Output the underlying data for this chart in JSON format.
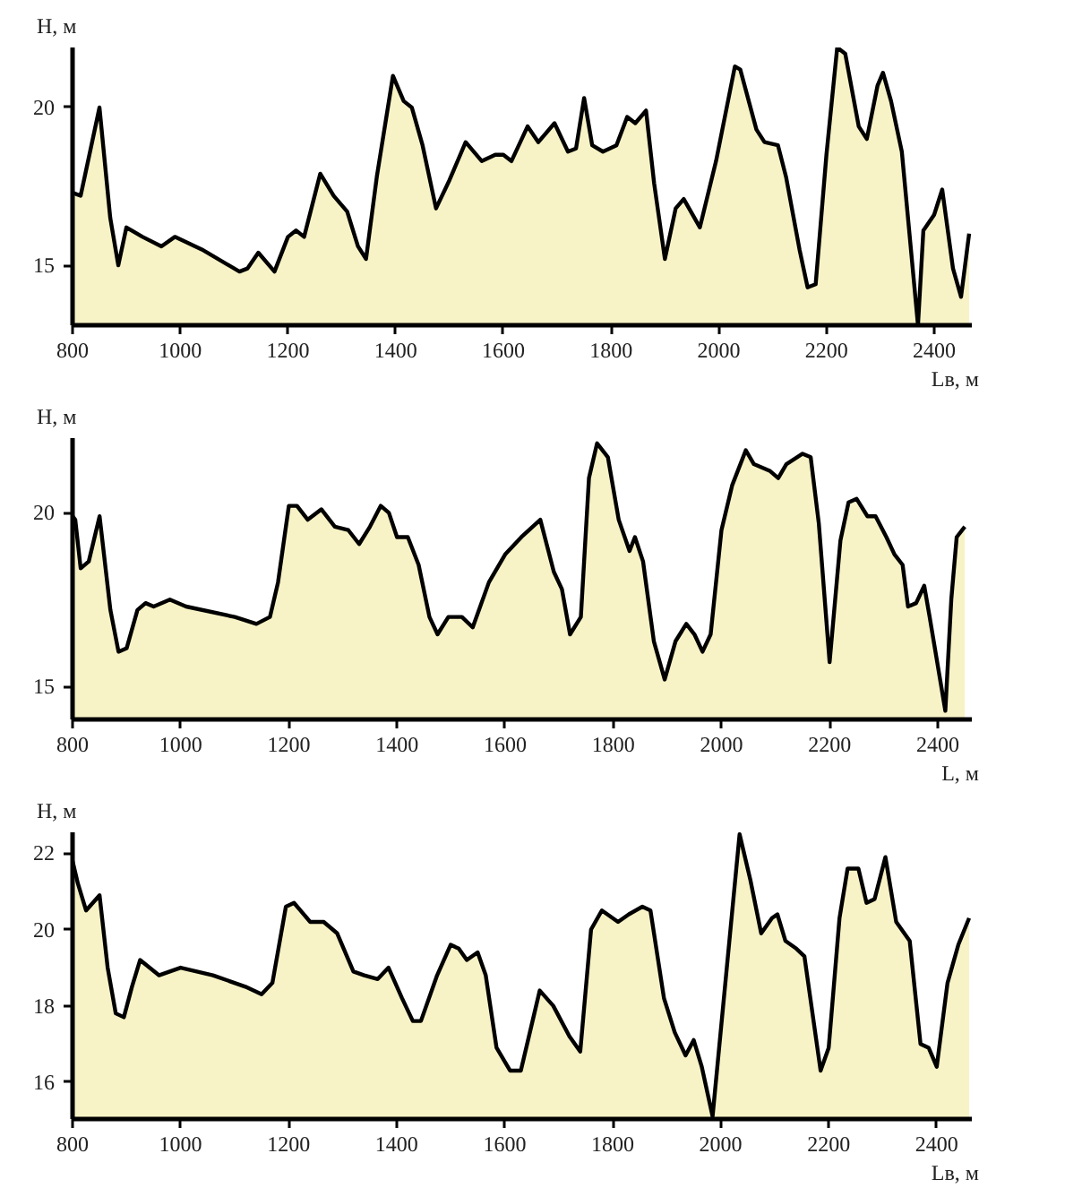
{
  "chart_data": [
    {
      "type": "area",
      "ylabel": "H, м",
      "xlabel": "Lв, м",
      "xlim": [
        800,
        2470
      ],
      "ylim": [
        13.1,
        21.9
      ],
      "xticks": [
        800,
        1000,
        1200,
        1400,
        1600,
        1800,
        2000,
        2200,
        2400
      ],
      "yticks": [
        15,
        20
      ],
      "grid": false,
      "series": [
        {
          "color": "#f8f3c6",
          "x": [
            800,
            815,
            850,
            870,
            885,
            900,
            930,
            965,
            990,
            1040,
            1110,
            1125,
            1145,
            1175,
            1200,
            1215,
            1230,
            1260,
            1285,
            1310,
            1330,
            1345,
            1365,
            1395,
            1415,
            1430,
            1450,
            1475,
            1500,
            1530,
            1560,
            1585,
            1600,
            1615,
            1645,
            1665,
            1695,
            1720,
            1735,
            1750,
            1765,
            1785,
            1810,
            1830,
            1845,
            1865,
            1880,
            1900,
            1920,
            1935,
            1965,
            1995,
            2030,
            2040,
            2070,
            2085,
            2110,
            2125,
            2150,
            2165,
            2180,
            2200,
            2220,
            2235,
            2260,
            2275,
            2295,
            2305,
            2320,
            2340,
            2370,
            2380,
            2400,
            2415,
            2435,
            2450,
            2465
          ],
          "values": [
            17.3,
            17.2,
            20.0,
            16.5,
            15.0,
            16.2,
            15.9,
            15.6,
            15.9,
            15.5,
            14.8,
            14.9,
            15.4,
            14.8,
            15.9,
            16.1,
            15.9,
            17.9,
            17.2,
            16.7,
            15.6,
            15.2,
            17.8,
            21.0,
            20.2,
            20.0,
            18.8,
            16.8,
            17.7,
            18.9,
            18.3,
            18.5,
            18.5,
            18.3,
            19.4,
            18.9,
            19.5,
            18.6,
            18.7,
            20.3,
            18.8,
            18.6,
            18.8,
            19.7,
            19.5,
            19.9,
            17.6,
            15.2,
            16.8,
            17.1,
            16.2,
            18.3,
            21.3,
            21.2,
            19.3,
            18.9,
            18.8,
            17.8,
            15.5,
            14.3,
            14.4,
            18.5,
            21.9,
            21.7,
            19.4,
            19.0,
            20.7,
            21.1,
            20.2,
            18.6,
            13.1,
            16.1,
            16.6,
            17.4,
            14.9,
            14.0,
            16.0
          ]
        }
      ]
    },
    {
      "type": "area",
      "ylabel": "H, м",
      "xlabel": "L, м",
      "xlim": [
        800,
        2463
      ],
      "ylim": [
        14.05,
        22.15
      ],
      "xticks": [
        800,
        1000,
        1200,
        1400,
        1600,
        1800,
        2000,
        2200,
        2400
      ],
      "yticks": [
        15,
        20
      ],
      "grid": false,
      "series": [
        {
          "color": "#f8f3c6",
          "x": [
            800,
            805,
            815,
            830,
            850,
            870,
            885,
            900,
            920,
            935,
            950,
            980,
            1010,
            1100,
            1140,
            1165,
            1180,
            1200,
            1215,
            1235,
            1260,
            1285,
            1310,
            1330,
            1350,
            1370,
            1385,
            1400,
            1420,
            1440,
            1460,
            1475,
            1495,
            1520,
            1540,
            1570,
            1600,
            1630,
            1665,
            1690,
            1705,
            1720,
            1740,
            1755,
            1770,
            1790,
            1810,
            1830,
            1840,
            1855,
            1875,
            1895,
            1915,
            1935,
            1950,
            1965,
            1980,
            2000,
            2020,
            2045,
            2060,
            2090,
            2105,
            2120,
            2150,
            2165,
            2180,
            2200,
            2220,
            2235,
            2250,
            2270,
            2285,
            2305,
            2320,
            2335,
            2345,
            2360,
            2375,
            2385,
            2414,
            2425,
            2435,
            2450
          ],
          "values": [
            19.9,
            19.8,
            18.4,
            18.6,
            19.9,
            17.2,
            16.0,
            16.1,
            17.2,
            17.4,
            17.3,
            17.5,
            17.3,
            17.0,
            16.8,
            17.0,
            18.0,
            20.2,
            20.2,
            19.8,
            20.1,
            19.6,
            19.5,
            19.1,
            19.6,
            20.2,
            20.0,
            19.3,
            19.3,
            18.5,
            17.0,
            16.5,
            17.0,
            17.0,
            16.7,
            18.0,
            18.8,
            19.3,
            19.8,
            18.3,
            17.8,
            16.5,
            17.0,
            21.0,
            22.0,
            21.6,
            19.8,
            18.9,
            19.3,
            18.6,
            16.3,
            15.2,
            16.3,
            16.8,
            16.5,
            16.0,
            16.5,
            19.5,
            20.8,
            21.8,
            21.4,
            21.2,
            21.0,
            21.4,
            21.7,
            21.6,
            19.7,
            15.7,
            19.2,
            20.3,
            20.4,
            19.9,
            19.9,
            19.3,
            18.8,
            18.5,
            17.3,
            17.4,
            17.9,
            17.0,
            14.3,
            17.5,
            19.3,
            19.6
          ]
        }
      ]
    },
    {
      "type": "area",
      "ylabel": "H, м",
      "xlabel": "Lв, м",
      "xlim": [
        800,
        2465
      ],
      "ylim": [
        15.03,
        22.55
      ],
      "xticks": [
        800,
        1000,
        1200,
        1400,
        1600,
        1800,
        2000,
        2200,
        2400
      ],
      "yticks": [
        16,
        18,
        20,
        22
      ],
      "grid": false,
      "series": [
        {
          "color": "#f8f3c6",
          "x": [
            800,
            810,
            825,
            850,
            865,
            880,
            895,
            910,
            925,
            960,
            1000,
            1060,
            1120,
            1150,
            1170,
            1195,
            1210,
            1240,
            1265,
            1290,
            1320,
            1340,
            1365,
            1385,
            1410,
            1430,
            1445,
            1475,
            1500,
            1515,
            1530,
            1550,
            1565,
            1585,
            1610,
            1630,
            1655,
            1665,
            1690,
            1720,
            1740,
            1760,
            1780,
            1810,
            1830,
            1855,
            1870,
            1895,
            1915,
            1935,
            1950,
            1965,
            1985,
            2035,
            2055,
            2075,
            2095,
            2105,
            2120,
            2140,
            2155,
            2185,
            2200,
            2220,
            2235,
            2255,
            2270,
            2285,
            2305,
            2325,
            2350,
            2370,
            2385,
            2400,
            2420,
            2440,
            2460
          ],
          "values": [
            21.8,
            21.2,
            20.5,
            20.9,
            19.0,
            17.8,
            17.7,
            18.5,
            19.2,
            18.8,
            19.0,
            18.8,
            18.5,
            18.3,
            18.6,
            20.6,
            20.7,
            20.2,
            20.2,
            19.9,
            18.9,
            18.8,
            18.7,
            19.0,
            18.2,
            17.6,
            17.6,
            18.8,
            19.6,
            19.5,
            19.2,
            19.4,
            18.8,
            16.9,
            16.3,
            16.3,
            17.8,
            18.4,
            18.0,
            17.2,
            16.8,
            20.0,
            20.5,
            20.2,
            20.4,
            20.6,
            20.5,
            18.2,
            17.3,
            16.7,
            17.1,
            16.4,
            15.1,
            22.5,
            21.3,
            19.9,
            20.3,
            20.4,
            19.7,
            19.5,
            19.3,
            16.3,
            16.9,
            20.3,
            21.6,
            21.6,
            20.7,
            20.8,
            21.9,
            20.2,
            19.7,
            17.0,
            16.9,
            16.4,
            18.6,
            19.6,
            20.3
          ]
        }
      ]
    }
  ]
}
